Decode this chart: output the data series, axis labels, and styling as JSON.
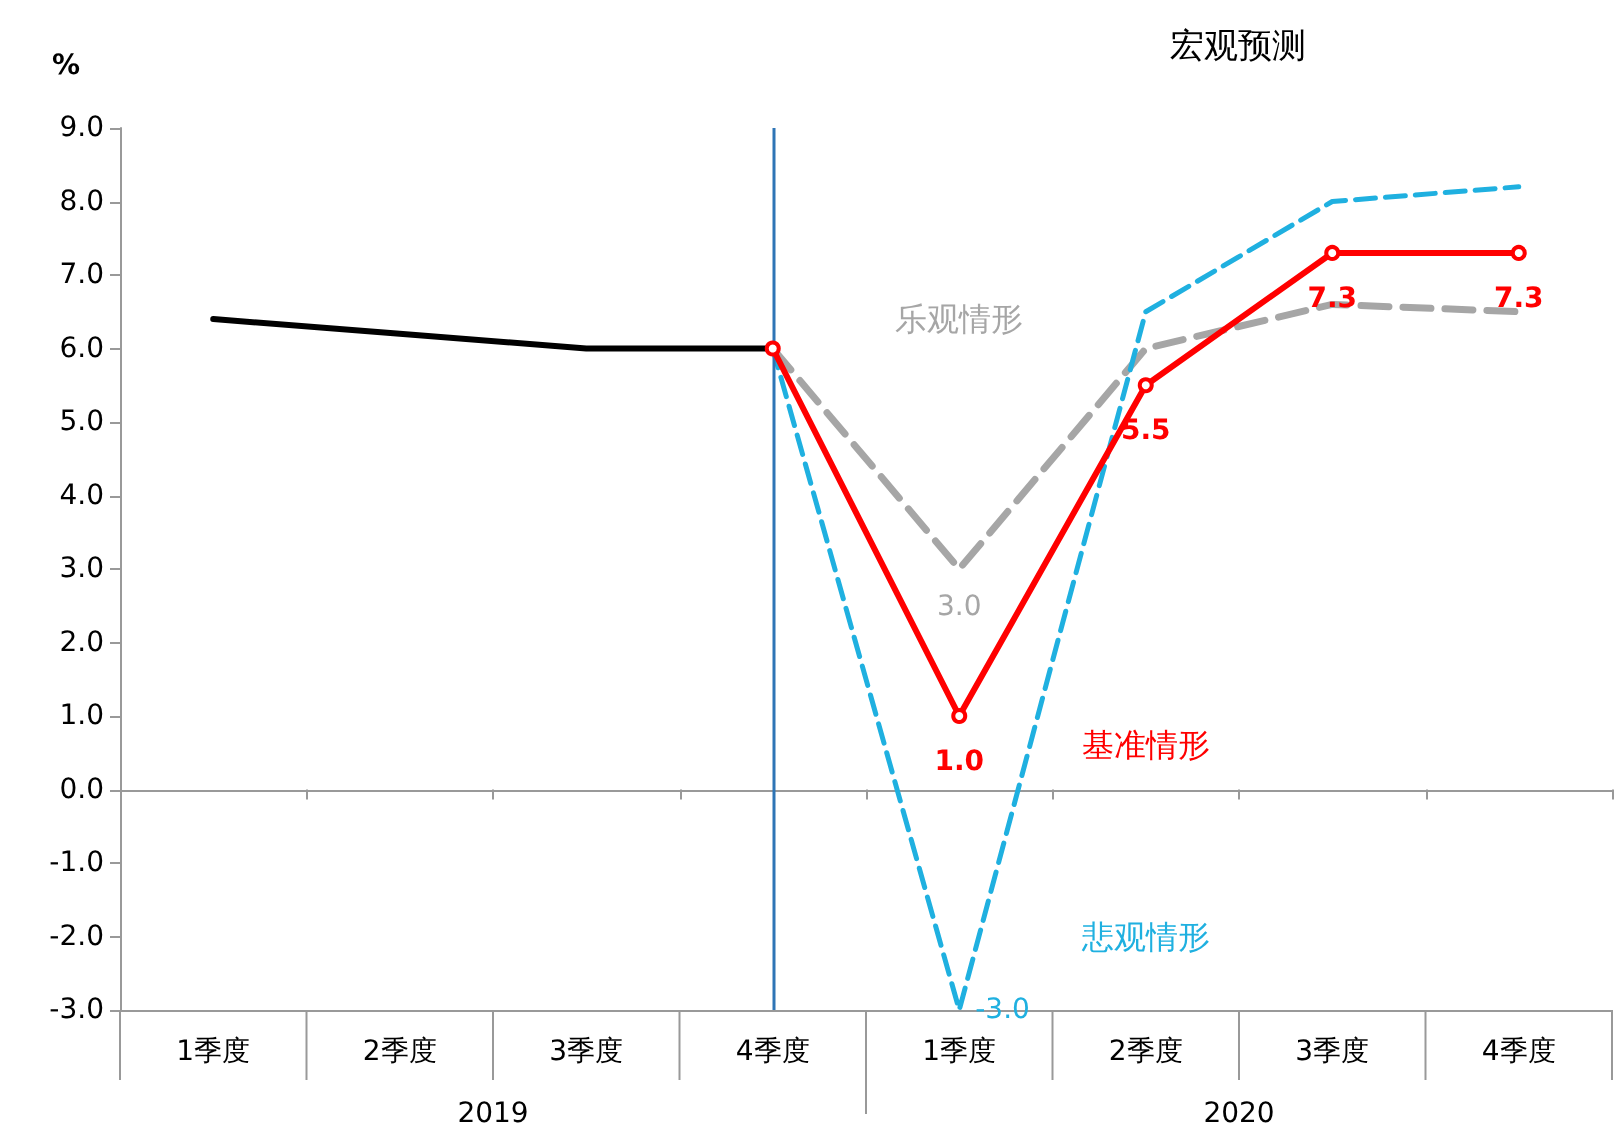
{
  "chart_data": {
    "type": "line",
    "title": "宏观预测",
    "ylabel": "%",
    "categories": [
      "1季度",
      "2季度",
      "3季度",
      "4季度",
      "1季度",
      "2季度",
      "3季度",
      "4季度"
    ],
    "annotations": [
      "2019",
      "2020"
    ],
    "series": [
      {
        "color": "#000000",
        "values": [
          6.4,
          6.2,
          6.0,
          6.0,
          null,
          null,
          null,
          null
        ]
      },
      {
        "name": "乐观情形",
        "color": "#a6a6a6",
        "line_style": "dashed",
        "values": [
          null,
          null,
          null,
          6.0,
          3.0,
          6.0,
          6.6,
          6.5
        ],
        "value_labels": [
          null,
          null,
          null,
          null,
          "3.0",
          null,
          null,
          null
        ]
      },
      {
        "name": "悲观情形",
        "color": "#1fb0e0",
        "line_style": "dashed",
        "values": [
          null,
          null,
          null,
          6.0,
          -3.0,
          6.5,
          8.0,
          8.2
        ],
        "value_labels": [
          null,
          null,
          null,
          null,
          "-3.0",
          null,
          null,
          null
        ]
      },
      {
        "name": "基准情形",
        "color": "#ff0000",
        "marker": "circle",
        "values": [
          null,
          null,
          null,
          6.0,
          1.0,
          5.5,
          7.3,
          7.3
        ],
        "value_labels": [
          null,
          null,
          null,
          null,
          "1.0",
          "5.5",
          "7.3",
          "7.3"
        ]
      }
    ],
    "ylim": [
      -3,
      9
    ],
    "yticks": [
      {
        "value": -3,
        "label": "-3.0"
      },
      {
        "value": -2,
        "label": "-2.0"
      },
      {
        "value": -1,
        "label": "-1.0"
      },
      {
        "value": 0,
        "label": "0.0"
      },
      {
        "value": 1,
        "label": "1.0"
      },
      {
        "value": 2,
        "label": "2.0"
      },
      {
        "value": 3,
        "label": "3.0"
      },
      {
        "value": 4,
        "label": "4.0"
      },
      {
        "value": 5,
        "label": "5.0"
      },
      {
        "value": 6,
        "label": "6.0"
      },
      {
        "value": 7,
        "label": "7.0"
      },
      {
        "value": 8,
        "label": "8.0"
      },
      {
        "value": 9,
        "label": "9.0"
      }
    ],
    "ref_lines": [
      {
        "axis": "x",
        "value": "4季度",
        "color": "#2e75b6"
      }
    ],
    "grid": false,
    "legend": false
  }
}
